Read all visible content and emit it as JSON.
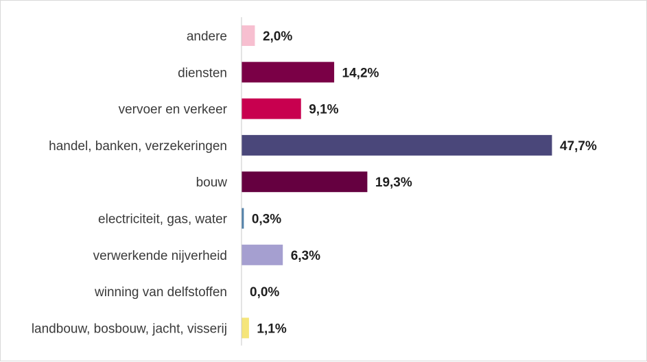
{
  "chart_data": {
    "type": "bar",
    "orientation": "horizontal",
    "title": "",
    "xlabel": "",
    "ylabel": "",
    "xlim": [
      0,
      50
    ],
    "grid": false,
    "legend": "none",
    "categories": [
      "andere",
      "diensten",
      "vervoer en verkeer",
      "handel, banken, verzekeringen",
      "bouw",
      "electriciteit, gas, water",
      "verwerkende nijverheid",
      "winning van delfstoffen",
      "landbouw, bosbouw, jacht, visserij"
    ],
    "values": [
      2.0,
      14.2,
      9.1,
      47.7,
      19.3,
      0.3,
      6.3,
      0.0,
      1.1
    ],
    "value_labels": [
      "2,0%",
      "14,2%",
      "9,1%",
      "47,7%",
      "19,3%",
      "0,3%",
      "6,3%",
      "0,0%",
      "1,1%"
    ],
    "colors": [
      "#f7bfd0",
      "#7a0046",
      "#c8004f",
      "#4a477a",
      "#650040",
      "#4f7fa8",
      "#a59fd0",
      "#bfbfbf",
      "#f5e57a"
    ],
    "axis_color": "#c8c8c8"
  }
}
